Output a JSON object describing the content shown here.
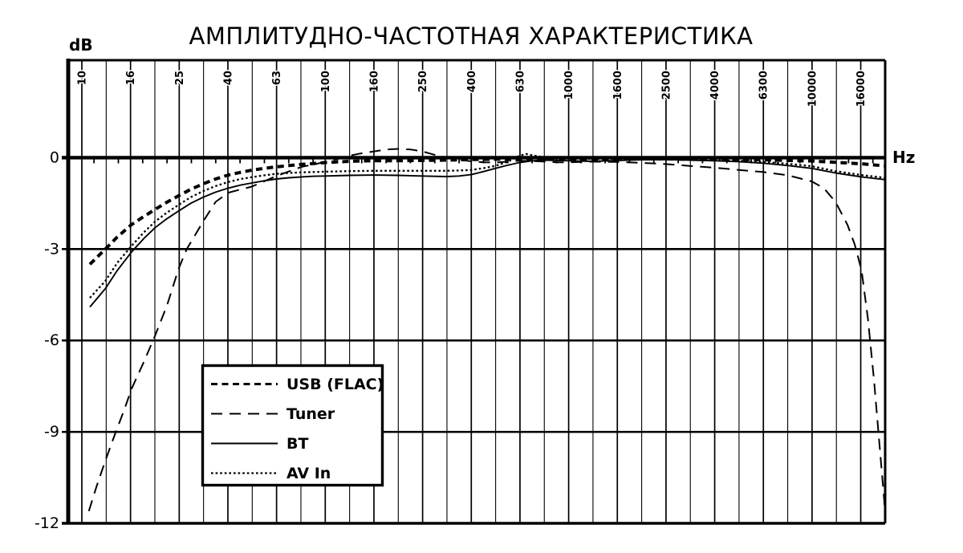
{
  "page": {
    "background": "#ffffff",
    "ink_color": "#000000"
  },
  "chart_data": {
    "type": "line",
    "title": "АМПЛИТУДНО-ЧАСТОТНАЯ ХАРАКТЕРИСТИКА",
    "ylabel": "dB",
    "x_unit": "Hz",
    "x_scale": "log-one-third-octave",
    "xlim": [
      8.8,
      20000
    ],
    "ylim": [
      -12,
      3.2
    ],
    "grid": "vertical 1/3-octave bands (every band), horizontal every 3 dB",
    "legend_position": "inside-lower-left",
    "x_tick_labels": [
      "10",
      "16",
      "25",
      "40",
      "63",
      "100",
      "160",
      "250",
      "400",
      "630",
      "1000",
      "1600",
      "2500",
      "4000",
      "6300",
      "10000",
      "16000"
    ],
    "y_ticks": [
      0,
      -3,
      -6,
      -9,
      -12
    ],
    "y_tick_labels": [
      "0",
      "-3",
      "-6",
      "-9",
      "-12"
    ],
    "axis_color": "#000000",
    "background": "#ffffff",
    "series": [
      {
        "name": "USB (FLAC)",
        "style": "dashed-bold",
        "points": [
          [
            10.8,
            -3.5
          ],
          [
            12.5,
            -3.0
          ],
          [
            14,
            -2.6
          ],
          [
            16,
            -2.2
          ],
          [
            18,
            -1.93
          ],
          [
            20,
            -1.7
          ],
          [
            22.4,
            -1.46
          ],
          [
            25,
            -1.25
          ],
          [
            28,
            -1.04
          ],
          [
            31.5,
            -0.86
          ],
          [
            35.5,
            -0.7
          ],
          [
            40,
            -0.57
          ],
          [
            45,
            -0.48
          ],
          [
            50,
            -0.41
          ],
          [
            56,
            -0.35
          ],
          [
            63,
            -0.3
          ],
          [
            71,
            -0.26
          ],
          [
            80,
            -0.22
          ],
          [
            90,
            -0.19
          ],
          [
            100,
            -0.16
          ],
          [
            112,
            -0.14
          ],
          [
            125,
            -0.12
          ],
          [
            140,
            -0.11
          ],
          [
            160,
            -0.1
          ],
          [
            200,
            -0.1
          ],
          [
            250,
            -0.09
          ],
          [
            315,
            -0.08
          ],
          [
            400,
            -0.06
          ],
          [
            500,
            -0.05
          ],
          [
            630,
            -0.05
          ],
          [
            800,
            -0.04
          ],
          [
            1000,
            -0.04
          ],
          [
            1250,
            -0.04
          ],
          [
            1600,
            -0.04
          ],
          [
            2000,
            -0.04
          ],
          [
            2500,
            -0.04
          ],
          [
            3150,
            -0.05
          ],
          [
            4000,
            -0.05
          ],
          [
            5000,
            -0.06
          ],
          [
            6300,
            -0.07
          ],
          [
            8000,
            -0.09
          ],
          [
            10000,
            -0.11
          ],
          [
            12500,
            -0.15
          ],
          [
            16000,
            -0.2
          ],
          [
            20000,
            -0.27
          ]
        ]
      },
      {
        "name": "Tuner",
        "style": "long-dash",
        "points": [
          [
            10.7,
            -11.6
          ],
          [
            11.5,
            -10.8
          ],
          [
            12.5,
            -9.95
          ],
          [
            13.8,
            -9.0
          ],
          [
            15,
            -8.25
          ],
          [
            16,
            -7.6
          ],
          [
            18,
            -6.7
          ],
          [
            20,
            -5.85
          ],
          [
            22.4,
            -4.85
          ],
          [
            25,
            -3.65
          ],
          [
            27,
            -3.0
          ],
          [
            31.5,
            -2.1
          ],
          [
            35.5,
            -1.45
          ],
          [
            40,
            -1.15
          ],
          [
            45,
            -1.04
          ],
          [
            50,
            -0.95
          ],
          [
            56,
            -0.78
          ],
          [
            63,
            -0.6
          ],
          [
            71,
            -0.45
          ],
          [
            80,
            -0.3
          ],
          [
            90,
            -0.22
          ],
          [
            100,
            -0.14
          ],
          [
            112,
            -0.04
          ],
          [
            125,
            0.06
          ],
          [
            140,
            0.14
          ],
          [
            160,
            0.21
          ],
          [
            180,
            0.27
          ],
          [
            200,
            0.29
          ],
          [
            224,
            0.27
          ],
          [
            250,
            0.21
          ],
          [
            280,
            0.1
          ],
          [
            315,
            0.0
          ],
          [
            355,
            -0.07
          ],
          [
            400,
            -0.12
          ],
          [
            450,
            -0.15
          ],
          [
            500,
            -0.16
          ],
          [
            560,
            -0.13
          ],
          [
            630,
            -0.1
          ],
          [
            710,
            -0.11
          ],
          [
            800,
            -0.13
          ],
          [
            900,
            -0.15
          ],
          [
            1000,
            -0.15
          ],
          [
            1250,
            -0.13
          ],
          [
            1600,
            -0.14
          ],
          [
            2000,
            -0.17
          ],
          [
            2500,
            -0.21
          ],
          [
            3150,
            -0.27
          ],
          [
            4000,
            -0.33
          ],
          [
            5000,
            -0.4
          ],
          [
            6300,
            -0.47
          ],
          [
            8000,
            -0.58
          ],
          [
            10000,
            -0.78
          ],
          [
            11200,
            -1.0
          ],
          [
            12500,
            -1.45
          ],
          [
            14000,
            -2.2
          ],
          [
            15000,
            -2.85
          ],
          [
            16000,
            -3.7
          ],
          [
            17000,
            -5.3
          ],
          [
            18000,
            -7.3
          ],
          [
            19000,
            -9.5
          ],
          [
            19800,
            -11.2
          ],
          [
            20000,
            -11.8
          ]
        ]
      },
      {
        "name": "BT",
        "style": "solid",
        "points": [
          [
            10.8,
            -4.9
          ],
          [
            12.5,
            -4.3
          ],
          [
            14,
            -3.7
          ],
          [
            16,
            -3.1
          ],
          [
            18,
            -2.65
          ],
          [
            20,
            -2.3
          ],
          [
            22.4,
            -2.0
          ],
          [
            25,
            -1.75
          ],
          [
            28,
            -1.5
          ],
          [
            31.5,
            -1.3
          ],
          [
            35.5,
            -1.13
          ],
          [
            40,
            -1.0
          ],
          [
            45,
            -0.9
          ],
          [
            50,
            -0.83
          ],
          [
            56,
            -0.76
          ],
          [
            63,
            -0.7
          ],
          [
            71,
            -0.66
          ],
          [
            80,
            -0.63
          ],
          [
            90,
            -0.61
          ],
          [
            100,
            -0.6
          ],
          [
            125,
            -0.58
          ],
          [
            160,
            -0.57
          ],
          [
            200,
            -0.58
          ],
          [
            250,
            -0.6
          ],
          [
            315,
            -0.62
          ],
          [
            355,
            -0.6
          ],
          [
            400,
            -0.55
          ],
          [
            450,
            -0.45
          ],
          [
            500,
            -0.35
          ],
          [
            560,
            -0.25
          ],
          [
            630,
            -0.16
          ],
          [
            710,
            -0.1
          ],
          [
            800,
            -0.08
          ],
          [
            900,
            -0.09
          ],
          [
            1000,
            -0.1
          ],
          [
            1250,
            -0.12
          ],
          [
            1600,
            -0.09
          ],
          [
            2000,
            -0.07
          ],
          [
            2500,
            -0.06
          ],
          [
            3150,
            -0.08
          ],
          [
            4000,
            -0.1
          ],
          [
            5000,
            -0.13
          ],
          [
            6300,
            -0.18
          ],
          [
            8000,
            -0.26
          ],
          [
            10000,
            -0.35
          ],
          [
            12500,
            -0.5
          ],
          [
            16000,
            -0.63
          ],
          [
            20000,
            -0.72
          ]
        ]
      },
      {
        "name": "AV In",
        "style": "dotted",
        "points": [
          [
            10.8,
            -4.6
          ],
          [
            12.5,
            -4.05
          ],
          [
            14,
            -3.45
          ],
          [
            16,
            -2.9
          ],
          [
            18,
            -2.45
          ],
          [
            20,
            -2.1
          ],
          [
            22.4,
            -1.8
          ],
          [
            25,
            -1.55
          ],
          [
            28,
            -1.3
          ],
          [
            31.5,
            -1.1
          ],
          [
            35.5,
            -0.93
          ],
          [
            40,
            -0.8
          ],
          [
            45,
            -0.7
          ],
          [
            50,
            -0.64
          ],
          [
            56,
            -0.58
          ],
          [
            63,
            -0.53
          ],
          [
            71,
            -0.5
          ],
          [
            80,
            -0.48
          ],
          [
            90,
            -0.47
          ],
          [
            100,
            -0.46
          ],
          [
            125,
            -0.44
          ],
          [
            160,
            -0.43
          ],
          [
            200,
            -0.43
          ],
          [
            250,
            -0.43
          ],
          [
            315,
            -0.43
          ],
          [
            355,
            -0.42
          ],
          [
            400,
            -0.4
          ],
          [
            450,
            -0.34
          ],
          [
            500,
            -0.27
          ],
          [
            560,
            -0.14
          ],
          [
            600,
            -0.02
          ],
          [
            630,
            0.07
          ],
          [
            670,
            0.12
          ],
          [
            710,
            0.08
          ],
          [
            800,
            0.01
          ],
          [
            900,
            -0.02
          ],
          [
            1000,
            -0.03
          ],
          [
            1250,
            -0.04
          ],
          [
            1600,
            -0.04
          ],
          [
            2000,
            -0.04
          ],
          [
            2500,
            -0.05
          ],
          [
            3150,
            -0.06
          ],
          [
            4000,
            -0.08
          ],
          [
            5000,
            -0.1
          ],
          [
            6300,
            -0.14
          ],
          [
            8000,
            -0.2
          ],
          [
            10000,
            -0.28
          ],
          [
            12500,
            -0.44
          ],
          [
            16000,
            -0.57
          ],
          [
            20000,
            -0.66
          ]
        ]
      }
    ],
    "legend": {
      "entries": [
        "USB (FLAC)",
        "Tuner",
        "BT",
        "AV In"
      ]
    }
  }
}
